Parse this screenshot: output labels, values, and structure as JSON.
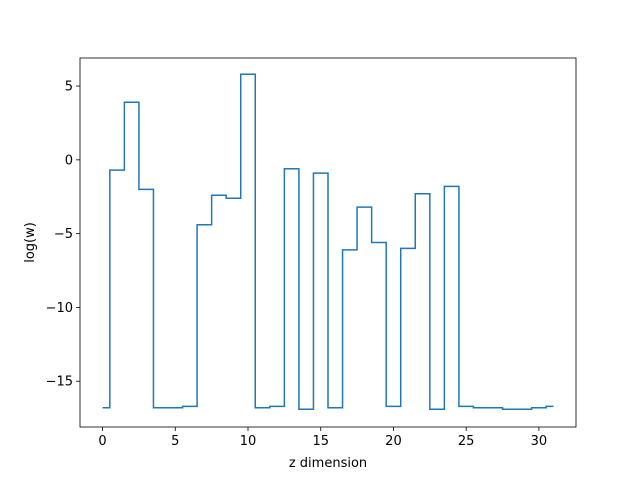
{
  "chart_data": {
    "type": "line",
    "drawstyle": "steps-mid",
    "xlabel": "z dimension",
    "ylabel": "log(w)",
    "xlim": [
      -1.55,
      32.55
    ],
    "ylim": [
      -18.1,
      6.9
    ],
    "xticks": [
      0,
      5,
      10,
      15,
      20,
      25,
      30
    ],
    "yticks": [
      5,
      0,
      -5,
      -10,
      -15
    ],
    "ytick_labels": [
      "5",
      "0",
      "−5",
      "−10",
      "−15"
    ],
    "grid": false,
    "line_color": "#1f77b4",
    "x": [
      0,
      1,
      2,
      3,
      4,
      5,
      6,
      7,
      8,
      9,
      10,
      11,
      12,
      13,
      14,
      15,
      16,
      17,
      18,
      19,
      20,
      21,
      22,
      23,
      24,
      25,
      26,
      27,
      28,
      29,
      30,
      31
    ],
    "values": [
      -16.8,
      -0.7,
      3.9,
      -2.0,
      -16.8,
      -16.8,
      -16.7,
      -4.4,
      -2.4,
      -2.6,
      5.8,
      -16.8,
      -16.7,
      -0.6,
      -16.9,
      -0.9,
      -16.8,
      -6.1,
      -3.2,
      -5.6,
      -16.7,
      -6.0,
      -2.3,
      -16.9,
      -1.8,
      -16.7,
      -16.8,
      -16.8,
      -16.9,
      -16.9,
      -16.8,
      -16.7
    ]
  }
}
